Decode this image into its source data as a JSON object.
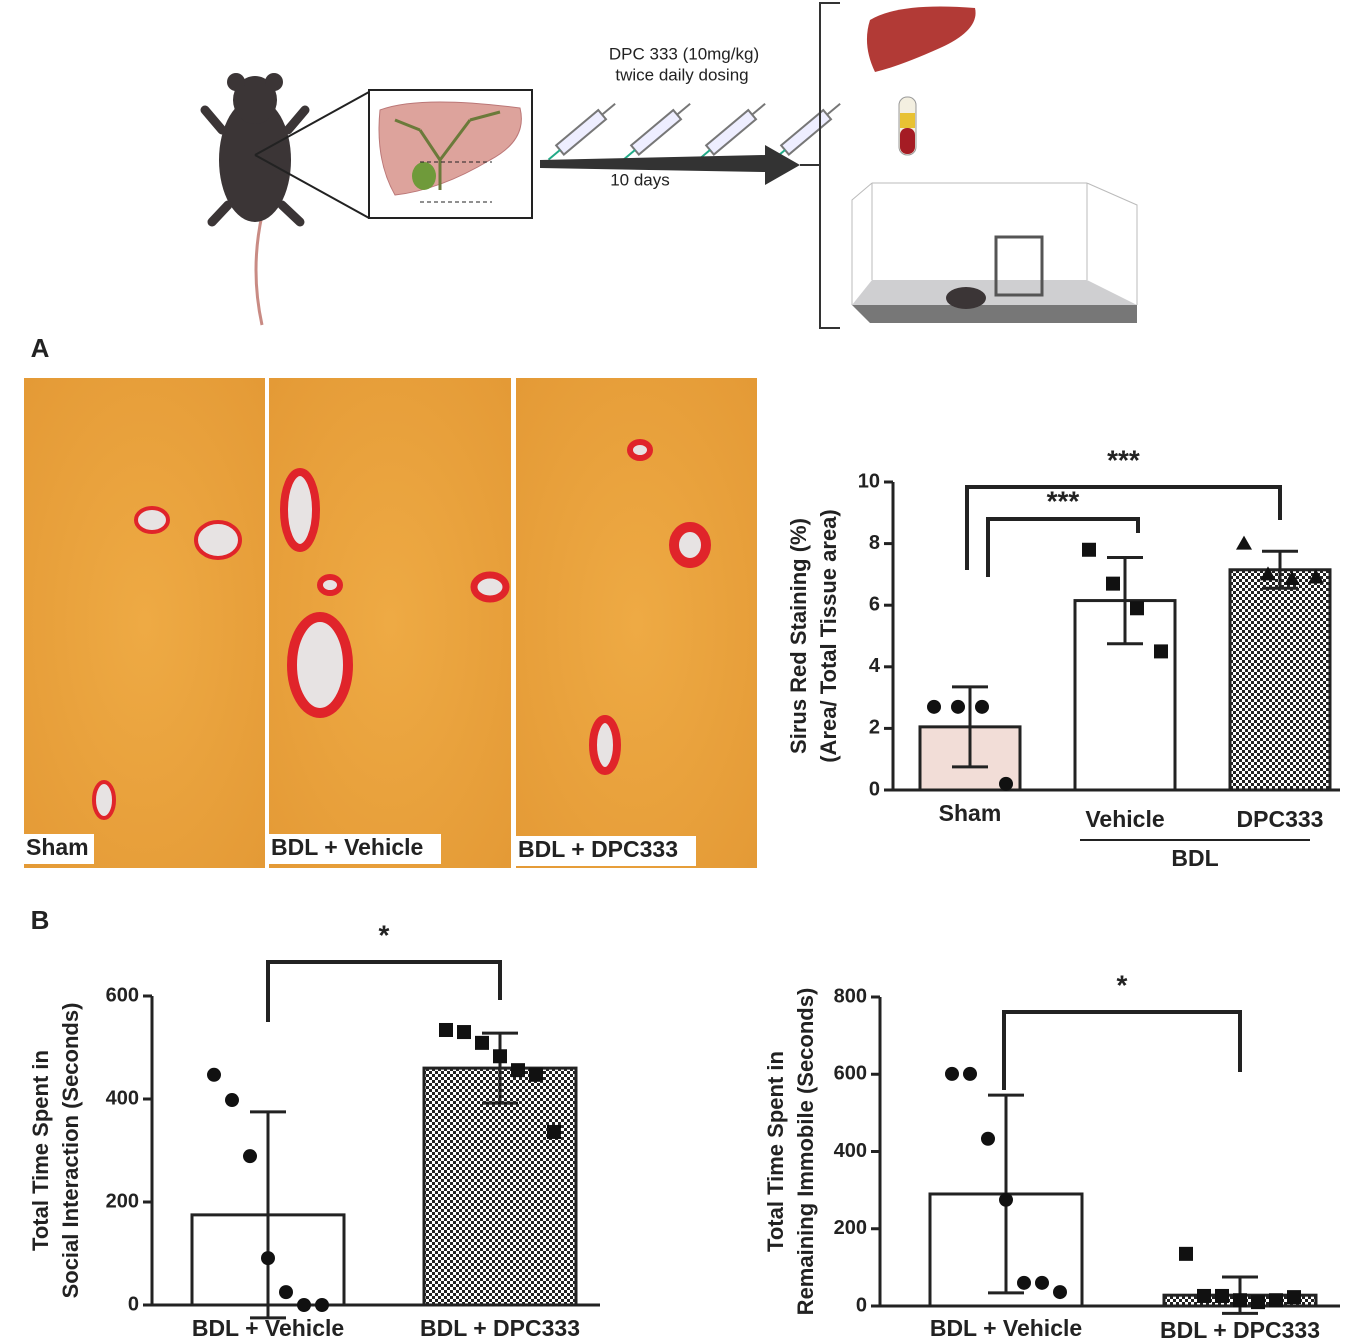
{
  "schematic": {
    "dose": "DPC 333 (10mg/kg)",
    "schedule": "twice daily dosing",
    "duration": "10 days"
  },
  "panel_labels": [
    "A",
    "B"
  ],
  "micrographs": [
    "Sham",
    "BDL + Vehicle",
    "BDL + DPC333"
  ],
  "chart_data": [
    {
      "type": "bar",
      "categories": [
        "Sham",
        "Vehicle",
        "DPC333"
      ],
      "group_label": "BDL",
      "ylabel": [
        "Sirus Red Staining (%)",
        "(Area/ Total Tissue area)"
      ],
      "ylim": [
        0,
        10
      ],
      "yticks": [
        0,
        2,
        4,
        6,
        8,
        10
      ],
      "values": [
        2.05,
        6.15,
        7.15
      ],
      "errors": [
        1.3,
        1.4,
        0.6
      ],
      "points": [
        [
          2.7,
          2.7,
          2.7,
          0.2
        ],
        [
          7.8,
          6.7,
          5.9,
          4.5
        ],
        [
          8.0,
          7.0,
          6.85,
          6.9
        ]
      ],
      "markers": [
        "circle",
        "square",
        "triangle"
      ],
      "bar_styles": [
        "#f2ddd7",
        "#ffffff",
        "checkered"
      ],
      "annotations": [
        "***",
        "***"
      ]
    },
    {
      "type": "bar",
      "categories": [
        "BDL + Vehicle",
        "BDL + DPC333"
      ],
      "ylabel": [
        "Total Time Spent in",
        "Social Interaction (Seconds)"
      ],
      "ylim": [
        0,
        600
      ],
      "yticks": [
        0,
        200,
        400,
        600
      ],
      "values": [
        175,
        460
      ],
      "errors": [
        200,
        68
      ],
      "points": [
        [
          447,
          398,
          289,
          91,
          25,
          0,
          0
        ],
        [
          534,
          530,
          509,
          483,
          456,
          447,
          336
        ]
      ],
      "markers": [
        "circle",
        "square"
      ],
      "bar_styles": [
        "#ffffff",
        "checkered"
      ],
      "annotations": [
        "*"
      ]
    },
    {
      "type": "bar",
      "categories": [
        "BDL + Vehicle",
        "BDL + DPC333"
      ],
      "ylabel": [
        "Total Time Spent in",
        "Remaining Immobile (Seconds)"
      ],
      "ylim": [
        0,
        800
      ],
      "yticks": [
        0,
        200,
        400,
        600,
        800
      ],
      "values": [
        290,
        28
      ],
      "errors": [
        256,
        47
      ],
      "points": [
        [
          601,
          601,
          433,
          275,
          60,
          60,
          36
        ],
        [
          135,
          26,
          26,
          15,
          10,
          15,
          23
        ]
      ],
      "markers": [
        "circle",
        "square"
      ],
      "bar_styles": [
        "#ffffff",
        "checkered"
      ],
      "annotations": [
        "*"
      ]
    }
  ]
}
